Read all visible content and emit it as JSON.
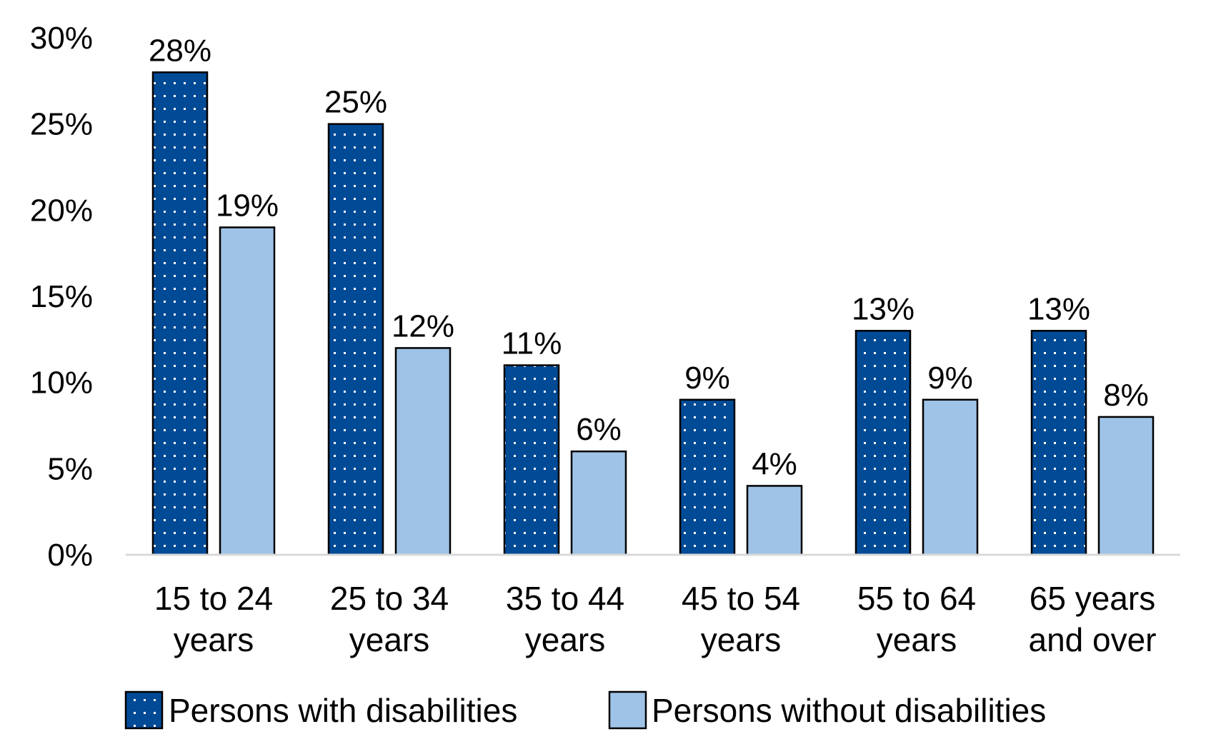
{
  "chart_data": {
    "type": "bar",
    "categories": [
      [
        "15 to 24",
        "years"
      ],
      [
        "25 to 34",
        "years"
      ],
      [
        "35 to 44",
        "years"
      ],
      [
        "45 to 54",
        "years"
      ],
      [
        "55 to 64",
        "years"
      ],
      [
        "65 years",
        "and over"
      ]
    ],
    "series": [
      {
        "name": "Persons with disabilities",
        "values": [
          28,
          25,
          11,
          9,
          13,
          13
        ],
        "labels": [
          "28%",
          "25%",
          "11%",
          "9%",
          "13%",
          "13%"
        ],
        "color": "#004a96",
        "pattern": "dotted"
      },
      {
        "name": "Persons without disabilities",
        "values": [
          19,
          12,
          6,
          4,
          9,
          8
        ],
        "labels": [
          "19%",
          "12%",
          "6%",
          "4%",
          "9%",
          "8%"
        ],
        "color": "#9fc3e7",
        "pattern": "solid"
      }
    ],
    "ylim": [
      0,
      30
    ],
    "yticks": [
      0,
      5,
      10,
      15,
      20,
      25,
      30
    ],
    "ytick_labels": [
      "0%",
      "5%",
      "10%",
      "15%",
      "20%",
      "25%",
      "30%"
    ],
    "xlabel": "",
    "ylabel": "",
    "title": "",
    "grid": false,
    "legend": "bottom"
  }
}
